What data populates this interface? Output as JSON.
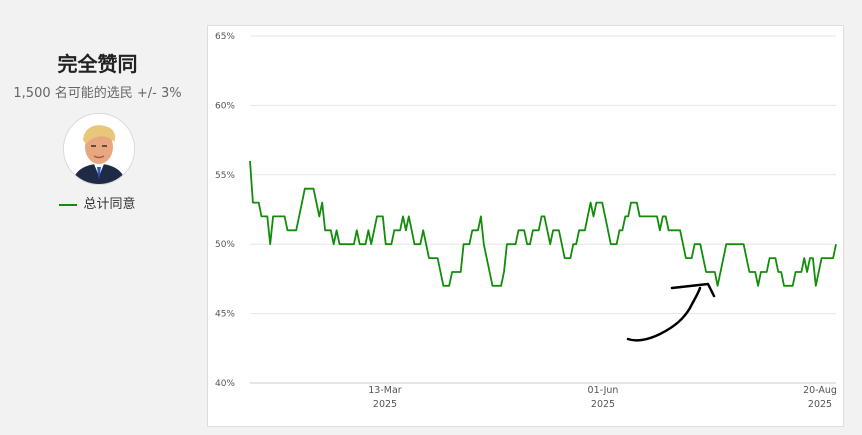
{
  "sidebar": {
    "title": "完全赞同",
    "subtitle": "1,500 名可能的选民 +/- 3%",
    "avatar_icon": "person-portrait-icon",
    "legend_label": "总计同意"
  },
  "chart_data": {
    "type": "line",
    "ylim": [
      40,
      65
    ],
    "y_ticks": [
      "65%",
      "60%",
      "55%",
      "50%",
      "45%",
      "40%"
    ],
    "x_ticks": [
      {
        "label": "13-Mar",
        "year": "2025"
      },
      {
        "label": "01-Jun",
        "year": "2025"
      },
      {
        "label": "20-Aug",
        "year": "2025"
      }
    ],
    "grid": true,
    "line_color": "#118d0a",
    "series": [
      {
        "name": "总计同意",
        "values": [
          56,
          53,
          53,
          53,
          52,
          52,
          52,
          50,
          52,
          52,
          52,
          52,
          52,
          51,
          51,
          51,
          51,
          52,
          53,
          54,
          54,
          54,
          54,
          53,
          52,
          53,
          51,
          51,
          51,
          50,
          51,
          50,
          50,
          50,
          50,
          50,
          50,
          51,
          50,
          50,
          50,
          51,
          50,
          51,
          52,
          52,
          52,
          50,
          50,
          50,
          51,
          51,
          51,
          52,
          51,
          52,
          51,
          50,
          50,
          50,
          51,
          50,
          49,
          49,
          49,
          49,
          48,
          47,
          47,
          47,
          48,
          48,
          48,
          48,
          50,
          50,
          50,
          51,
          51,
          51,
          52,
          50,
          49,
          48,
          47,
          47,
          47,
          47,
          48,
          50,
          50,
          50,
          50,
          51,
          51,
          51,
          50,
          50,
          51,
          51,
          51,
          52,
          52,
          51,
          50,
          51,
          51,
          51,
          50,
          49,
          49,
          49,
          50,
          50,
          51,
          51,
          51,
          52,
          53,
          52,
          53,
          53,
          53,
          52,
          51,
          50,
          50,
          50,
          51,
          51,
          52,
          52,
          53,
          53,
          53,
          52,
          52,
          52,
          52,
          52,
          52,
          52,
          51,
          52,
          52,
          51,
          51,
          51,
          51,
          51,
          50,
          49,
          49,
          49,
          50,
          50,
          50,
          49,
          48,
          48,
          48,
          48,
          47,
          48,
          49,
          50,
          50,
          50,
          50,
          50,
          50,
          50,
          49,
          48,
          48,
          48,
          47,
          48,
          48,
          48,
          49,
          49,
          49,
          48,
          48,
          47,
          47,
          47,
          47,
          48,
          48,
          48,
          49,
          48,
          49,
          49,
          47,
          48,
          49,
          49,
          49,
          49,
          49,
          50
        ]
      }
    ],
    "annotation": "hand-drawn-arrow"
  }
}
